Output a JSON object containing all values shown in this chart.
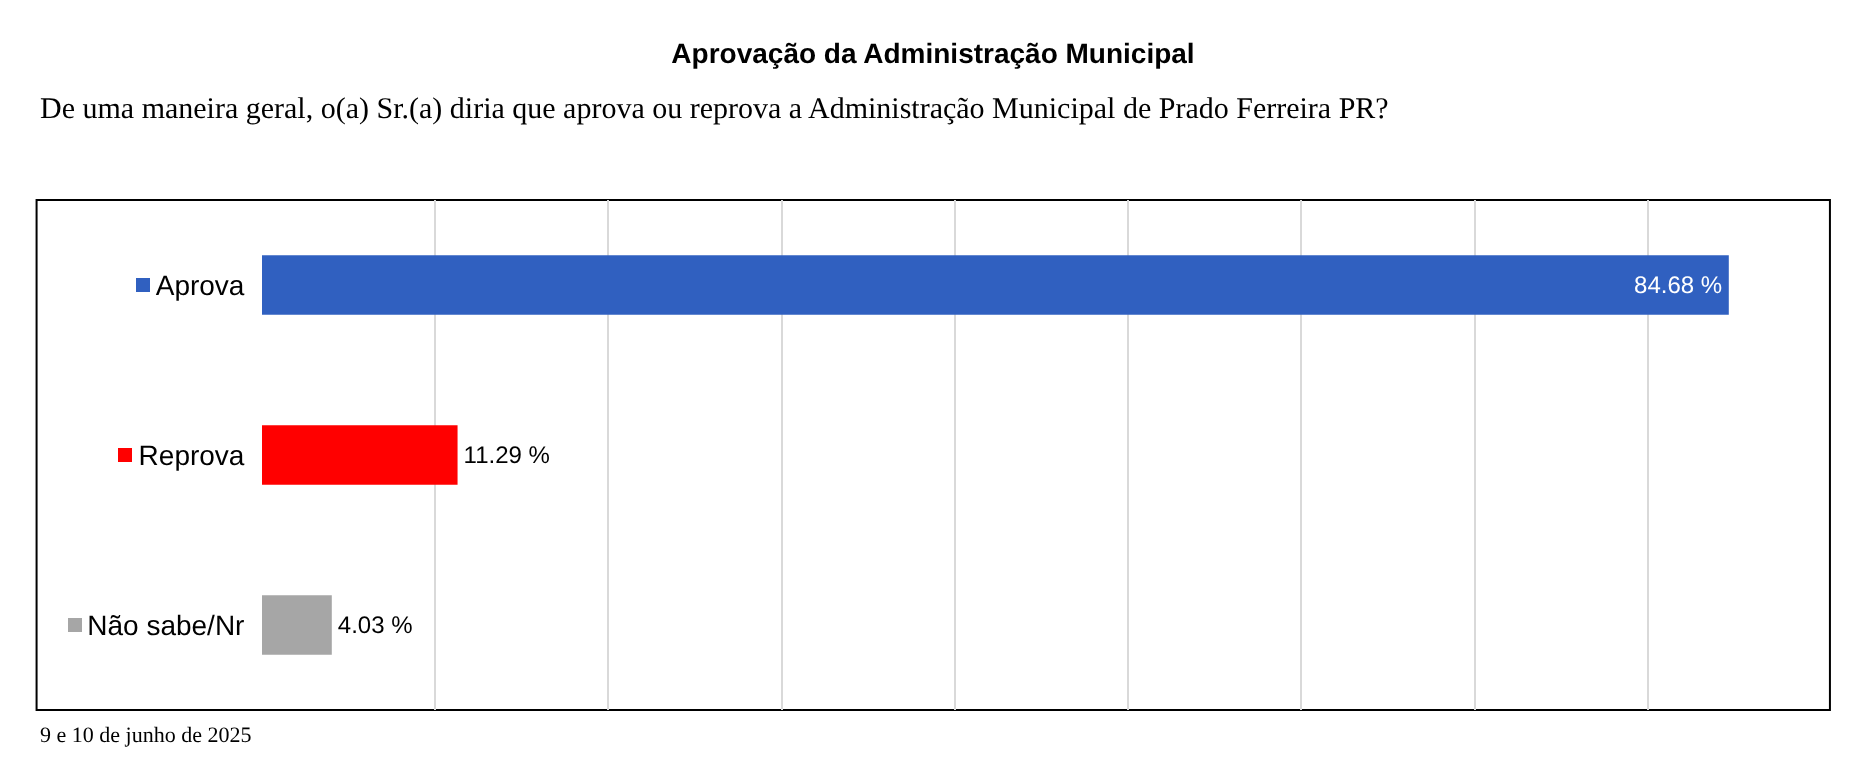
{
  "chart_data": {
    "type": "bar",
    "orientation": "horizontal",
    "title": "Aprovação da Administração Municipal",
    "subtitle": "De uma maneira geral, o(a) Sr.(a) diria que aprova ou reprova a Administração Municipal de Prado Ferreira PR?",
    "categories": [
      "Aprova",
      "Reprova",
      "Não sabe/Nr"
    ],
    "values": [
      84.68,
      11.29,
      4.03
    ],
    "colors": [
      "#3060c0",
      "#ff0000",
      "#a6a6a6"
    ],
    "value_labels": [
      "84.68 %",
      "11.29 %",
      "4.03 %"
    ],
    "grid": "x",
    "tick_labels": "y",
    "annotations": [
      "9 e 10 de junho de 2025"
    ]
  }
}
